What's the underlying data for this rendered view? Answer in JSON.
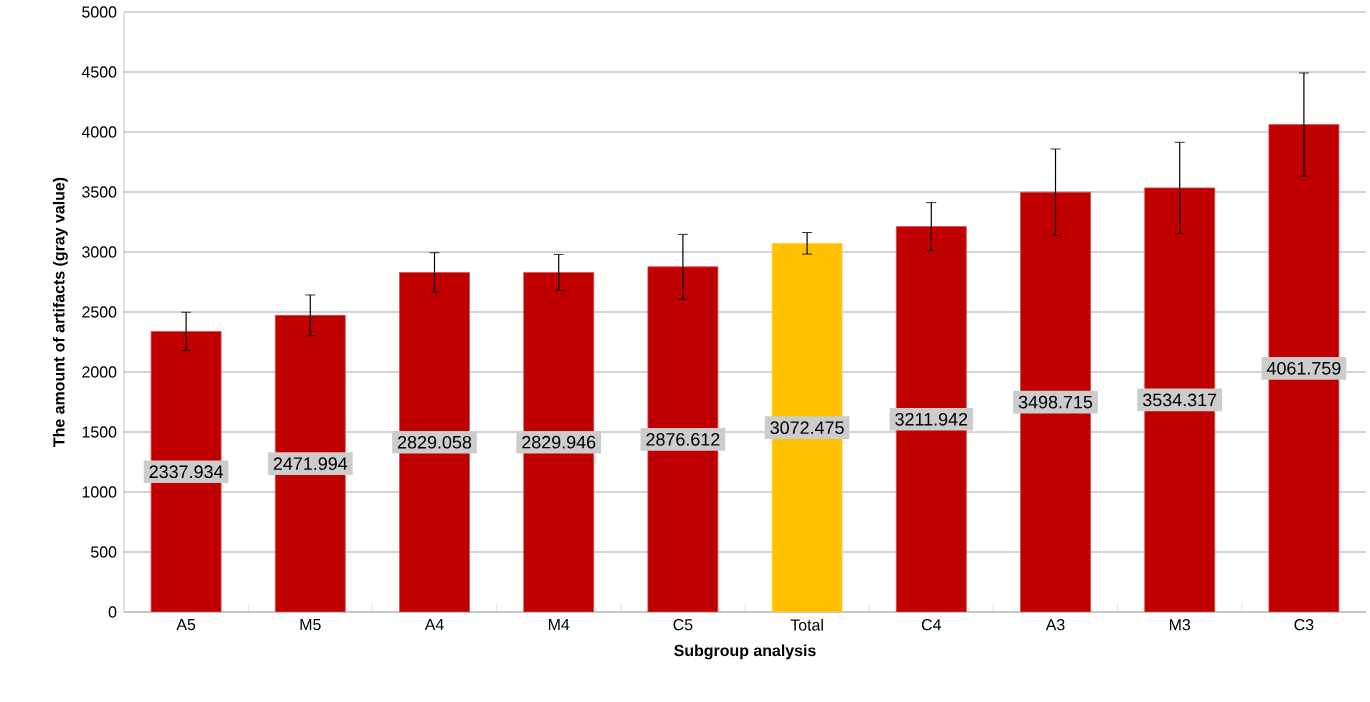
{
  "chart_data": {
    "type": "bar",
    "xlabel": "Subgroup analysis",
    "ylabel": "The amount of artifacts (gray value)",
    "categories": [
      "A5",
      "M5",
      "A4",
      "M4",
      "C5",
      "Total",
      "C4",
      "A3",
      "M3",
      "C3"
    ],
    "values": [
      2337.934,
      2471.994,
      2829.058,
      2829.946,
      2876.612,
      3072.475,
      3211.942,
      3498.715,
      3534.317,
      4061.759
    ],
    "errors": [
      160,
      170,
      165,
      150,
      270,
      90,
      200,
      360,
      380,
      430
    ],
    "colors": [
      "#c00000",
      "#c00000",
      "#c00000",
      "#c00000",
      "#c00000",
      "#ffc000",
      "#c00000",
      "#c00000",
      "#c00000",
      "#c00000"
    ],
    "ylim": [
      0,
      5000
    ],
    "yticks": [
      0,
      500,
      1000,
      1500,
      2000,
      2500,
      3000,
      3500,
      4000,
      4500,
      5000
    ],
    "grid": "y",
    "data_labels": true
  }
}
